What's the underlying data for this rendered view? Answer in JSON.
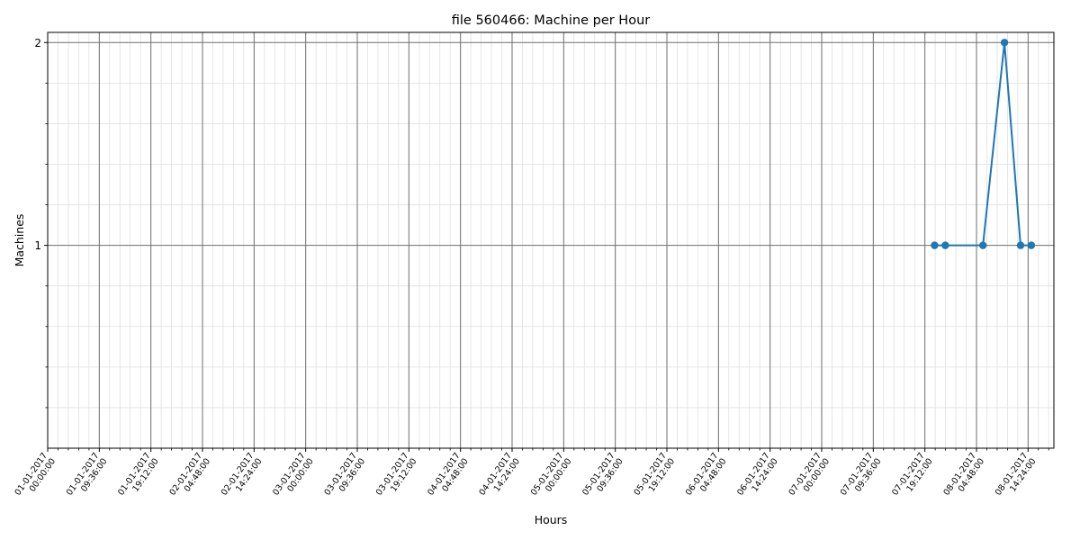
{
  "chart_data": {
    "type": "line",
    "title": "file 560466: Machine per Hour",
    "xlabel": "Hours",
    "ylabel": "Machines",
    "x_type": "datetime",
    "xlim": [
      "2017-01-01 00:00:00",
      "2017-01-08 19:12:00"
    ],
    "ylim": [
      0.0,
      2.05
    ],
    "yticks": [
      1,
      2
    ],
    "ytick_labels": [
      "1",
      "2"
    ],
    "grid": "on (major and minor)",
    "xticks": [
      {
        "x": "2017-01-01 00:00:00",
        "label": [
          "01-01-2017",
          "00:00:00"
        ]
      },
      {
        "x": "2017-01-01 09:36:00",
        "label": [
          "01-01-2017",
          "09:36:00"
        ]
      },
      {
        "x": "2017-01-01 19:12:00",
        "label": [
          "01-01-2017",
          "19:12:00"
        ]
      },
      {
        "x": "2017-01-02 04:48:00",
        "label": [
          "02-01-2017",
          "04:48:00"
        ]
      },
      {
        "x": "2017-01-02 14:24:00",
        "label": [
          "02-01-2017",
          "14:24:00"
        ]
      },
      {
        "x": "2017-01-03 00:00:00",
        "label": [
          "03-01-2017",
          "00:00:00"
        ]
      },
      {
        "x": "2017-01-03 09:36:00",
        "label": [
          "03-01-2017",
          "09:36:00"
        ]
      },
      {
        "x": "2017-01-03 19:12:00",
        "label": [
          "03-01-2017",
          "19:12:00"
        ]
      },
      {
        "x": "2017-01-04 04:48:00",
        "label": [
          "04-01-2017",
          "04:48:00"
        ]
      },
      {
        "x": "2017-01-04 14:24:00",
        "label": [
          "04-01-2017",
          "14:24:00"
        ]
      },
      {
        "x": "2017-01-05 00:00:00",
        "label": [
          "05-01-2017",
          "00:00:00"
        ]
      },
      {
        "x": "2017-01-05 09:36:00",
        "label": [
          "05-01-2017",
          "09:36:00"
        ]
      },
      {
        "x": "2017-01-05 19:12:00",
        "label": [
          "05-01-2017",
          "19:12:00"
        ]
      },
      {
        "x": "2017-01-06 04:48:00",
        "label": [
          "06-01-2017",
          "04:48:00"
        ]
      },
      {
        "x": "2017-01-06 14:24:00",
        "label": [
          "06-01-2017",
          "14:24:00"
        ]
      },
      {
        "x": "2017-01-07 00:00:00",
        "label": [
          "07-01-2017",
          "00:00:00"
        ]
      },
      {
        "x": "2017-01-07 09:36:00",
        "label": [
          "07-01-2017",
          "09:36:00"
        ]
      },
      {
        "x": "2017-01-07 19:12:00",
        "label": [
          "07-01-2017",
          "19:12:00"
        ]
      },
      {
        "x": "2017-01-08 04:48:00",
        "label": [
          "08-01-2017",
          "04:48:00"
        ]
      },
      {
        "x": "2017-01-08 14:24:00",
        "label": [
          "08-01-2017",
          "14:24:00"
        ]
      }
    ],
    "series": [
      {
        "color": "#1f77b4",
        "marker": "circle",
        "points": [
          {
            "x": "2017-01-07 21:00:00",
            "y": 1
          },
          {
            "x": "2017-01-07 23:00:00",
            "y": 1
          },
          {
            "x": "2017-01-08 06:00:00",
            "y": 1
          },
          {
            "x": "2017-01-08 10:00:00",
            "y": 2
          },
          {
            "x": "2017-01-08 13:00:00",
            "y": 1
          },
          {
            "x": "2017-01-08 15:00:00",
            "y": 1
          }
        ]
      }
    ],
    "colors": {
      "line": "#1f77b4",
      "major_grid": "#6e6e6e",
      "minor_grid": "#e0e0e0",
      "axes": "#000000"
    }
  }
}
